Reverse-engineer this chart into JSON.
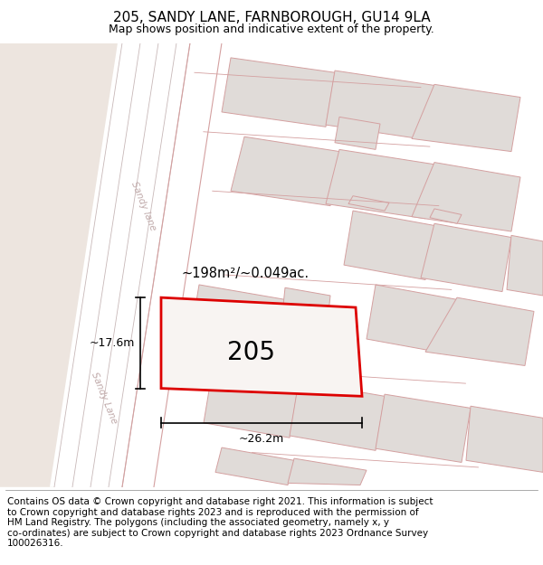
{
  "title": "205, SANDY LANE, FARNBOROUGH, GU14 9LA",
  "subtitle": "Map shows position and indicative extent of the property.",
  "footer": "Contains OS data © Crown copyright and database right 2021. This information is subject\nto Crown copyright and database rights 2023 and is reproduced with the permission of\nHM Land Registry. The polygons (including the associated geometry, namely x, y\nco-ordinates) are subject to Crown copyright and database rights 2023 Ordnance Survey\n100026316.",
  "bg_beige": "#ede5df",
  "bg_white": "#ffffff",
  "road_gray": "#d8d0cc",
  "building_fill": "#e0dbd8",
  "building_stroke": "#d4a0a0",
  "highlight_stroke": "#dd0000",
  "road_label_color": "#c0aaaa",
  "road_line_color": "#c8b8b8",
  "area_label": "~198m²/~0.049ac.",
  "property_label": "205",
  "dim_width": "~26.2m",
  "dim_height": "~17.6m",
  "title_fontsize": 11,
  "subtitle_fontsize": 9,
  "footer_fontsize": 7.5,
  "property_fontsize": 20,
  "area_fontsize": 10.5,
  "dim_fontsize": 9,
  "road_label_fontsize": 7.5
}
